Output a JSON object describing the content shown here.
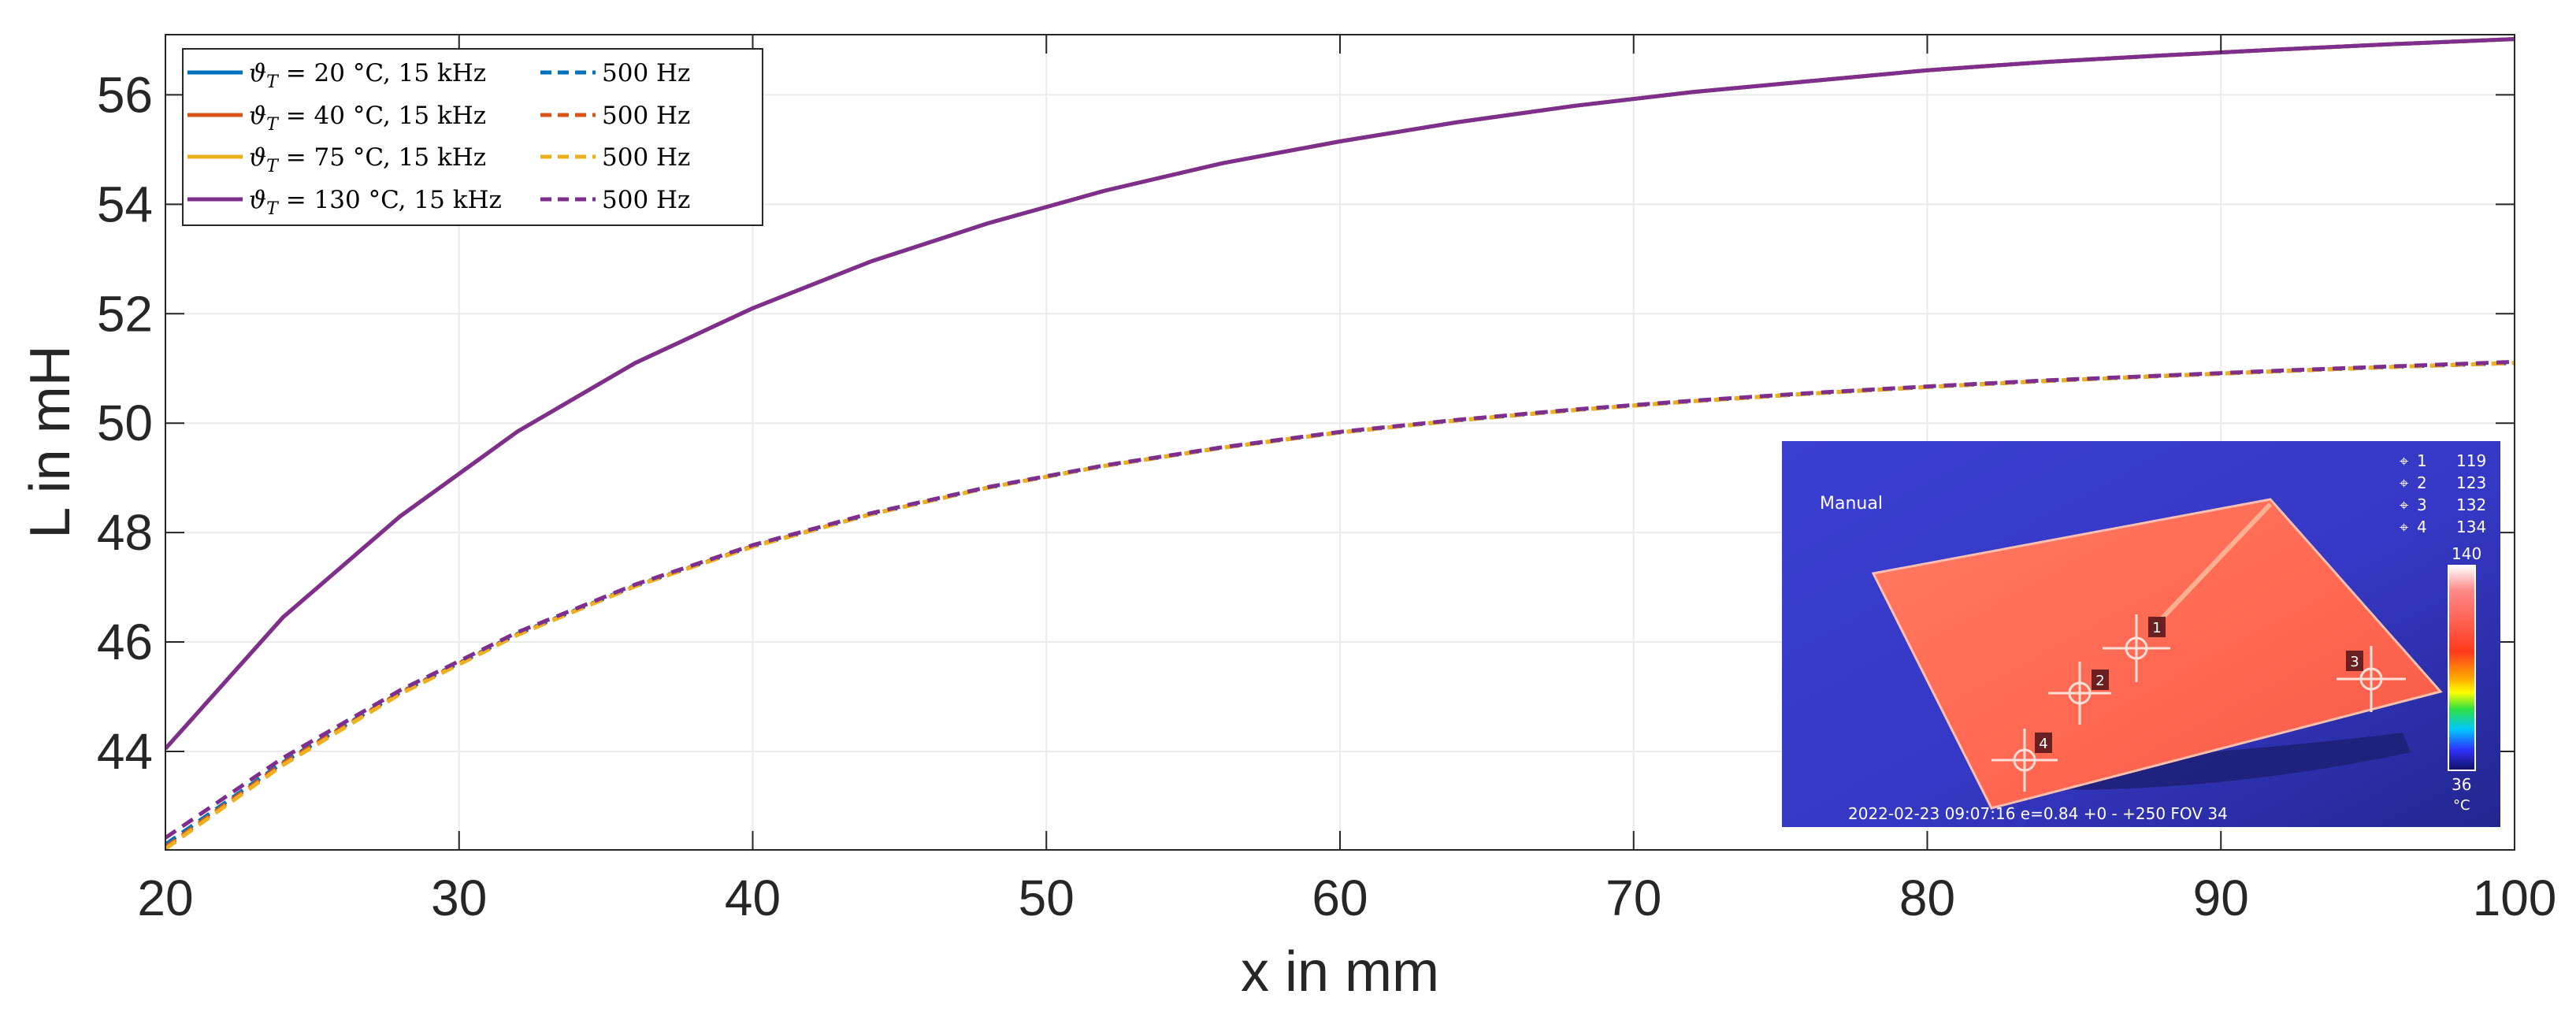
{
  "chart_data": {
    "type": "line",
    "xlabel": "x in mm",
    "ylabel": "L in mH",
    "xlim": [
      20,
      100
    ],
    "ylim": [
      42.2,
      57.1
    ],
    "xticks": [
      20,
      30,
      40,
      50,
      60,
      70,
      80,
      90,
      100
    ],
    "yticks": [
      44,
      46,
      48,
      50,
      52,
      54,
      56
    ],
    "grid": true,
    "legend_position": "top-left",
    "x": [
      20,
      24,
      28,
      32,
      36,
      40,
      44,
      48,
      52,
      56,
      60,
      64,
      68,
      72,
      76,
      80,
      84,
      88,
      92,
      96,
      100
    ],
    "series": [
      {
        "name": "ϑT = 20 °C, 15 kHz",
        "legend": {
          "symbol": "ϑ",
          "sub": "T",
          "rest": " = 20 °C, 15 kHz"
        },
        "color": "#0072BD",
        "dash": "solid",
        "values": [
          44.05,
          46.45,
          48.3,
          49.85,
          51.1,
          52.1,
          52.95,
          53.65,
          54.25,
          54.75,
          55.15,
          55.5,
          55.8,
          56.05,
          56.25,
          56.45,
          56.6,
          56.72,
          56.83,
          56.93,
          57.02
        ]
      },
      {
        "name": "500 Hz",
        "legend": {
          "rest": "500 Hz"
        },
        "color": "#0072BD",
        "dash": "dashed",
        "values": [
          42.3,
          43.8,
          45.08,
          46.15,
          47.03,
          47.75,
          48.33,
          48.82,
          49.22,
          49.55,
          49.83,
          50.05,
          50.24,
          50.4,
          50.54,
          50.66,
          50.77,
          50.86,
          50.95,
          51.03,
          51.1
        ]
      },
      {
        "name": "ϑT = 40 °C, 15 kHz",
        "legend": {
          "symbol": "ϑ",
          "sub": "T",
          "rest": " = 40 °C, 15 kHz"
        },
        "color": "#D95319",
        "dash": "solid",
        "values": [
          44.05,
          46.45,
          48.3,
          49.85,
          51.1,
          52.1,
          52.95,
          53.65,
          54.25,
          54.75,
          55.15,
          55.5,
          55.8,
          56.05,
          56.25,
          56.45,
          56.6,
          56.72,
          56.83,
          56.93,
          57.02
        ]
      },
      {
        "name": "500 Hz",
        "legend": {
          "rest": "500 Hz"
        },
        "color": "#D95319",
        "dash": "dashed",
        "values": [
          42.25,
          43.78,
          45.07,
          46.14,
          47.02,
          47.75,
          48.33,
          48.82,
          49.22,
          49.55,
          49.83,
          50.05,
          50.24,
          50.4,
          50.54,
          50.66,
          50.77,
          50.86,
          50.95,
          51.03,
          51.1
        ]
      },
      {
        "name": "ϑT = 75 °C, 15 kHz",
        "legend": {
          "symbol": "ϑ",
          "sub": "T",
          "rest": " = 75 °C, 15 kHz"
        },
        "color": "#EDB120",
        "dash": "solid",
        "values": [
          44.05,
          46.45,
          48.3,
          49.85,
          51.1,
          52.1,
          52.95,
          53.65,
          54.25,
          54.75,
          55.15,
          55.5,
          55.8,
          56.05,
          56.25,
          56.45,
          56.6,
          56.72,
          56.83,
          56.93,
          57.02
        ]
      },
      {
        "name": "500 Hz",
        "legend": {
          "rest": "500 Hz"
        },
        "color": "#EDB120",
        "dash": "dashed",
        "values": [
          42.22,
          43.75,
          45.05,
          46.13,
          47.02,
          47.74,
          48.33,
          48.82,
          49.22,
          49.55,
          49.83,
          50.05,
          50.24,
          50.4,
          50.54,
          50.66,
          50.77,
          50.86,
          50.95,
          51.03,
          51.1
        ]
      },
      {
        "name": "ϑT = 130 °C, 15 kHz",
        "legend": {
          "symbol": "ϑ",
          "sub": "T",
          "rest": " = 130 °C, 15 kHz"
        },
        "color": "#7E2F8E",
        "dash": "solid",
        "values": [
          44.05,
          46.45,
          48.3,
          49.85,
          51.1,
          52.1,
          52.95,
          53.65,
          54.25,
          54.75,
          55.15,
          55.5,
          55.8,
          56.05,
          56.25,
          56.45,
          56.6,
          56.72,
          56.83,
          56.93,
          57.02
        ]
      },
      {
        "name": "500 Hz",
        "legend": {
          "rest": "500 Hz"
        },
        "color": "#7E2F8E",
        "dash": "dashed",
        "values": [
          42.42,
          43.88,
          45.12,
          46.18,
          47.05,
          47.77,
          48.35,
          48.83,
          49.23,
          49.56,
          49.84,
          50.06,
          50.25,
          50.41,
          50.55,
          50.67,
          50.78,
          50.87,
          50.96,
          51.04,
          51.12
        ]
      }
    ]
  },
  "inset_thermal_image": {
    "mode_label": "Manual",
    "readouts": [
      {
        "marker": "1",
        "value": "119"
      },
      {
        "marker": "2",
        "value": "123"
      },
      {
        "marker": "3",
        "value": "132"
      },
      {
        "marker": "4",
        "value": "134"
      }
    ],
    "scale_max": "140",
    "scale_min": "36",
    "scale_unit": "°C",
    "footer": "2022-02-23 09:07:16 e=0.84 +0 - +250 FOV 34",
    "spot_labels": [
      "1",
      "2",
      "3",
      "4"
    ]
  }
}
